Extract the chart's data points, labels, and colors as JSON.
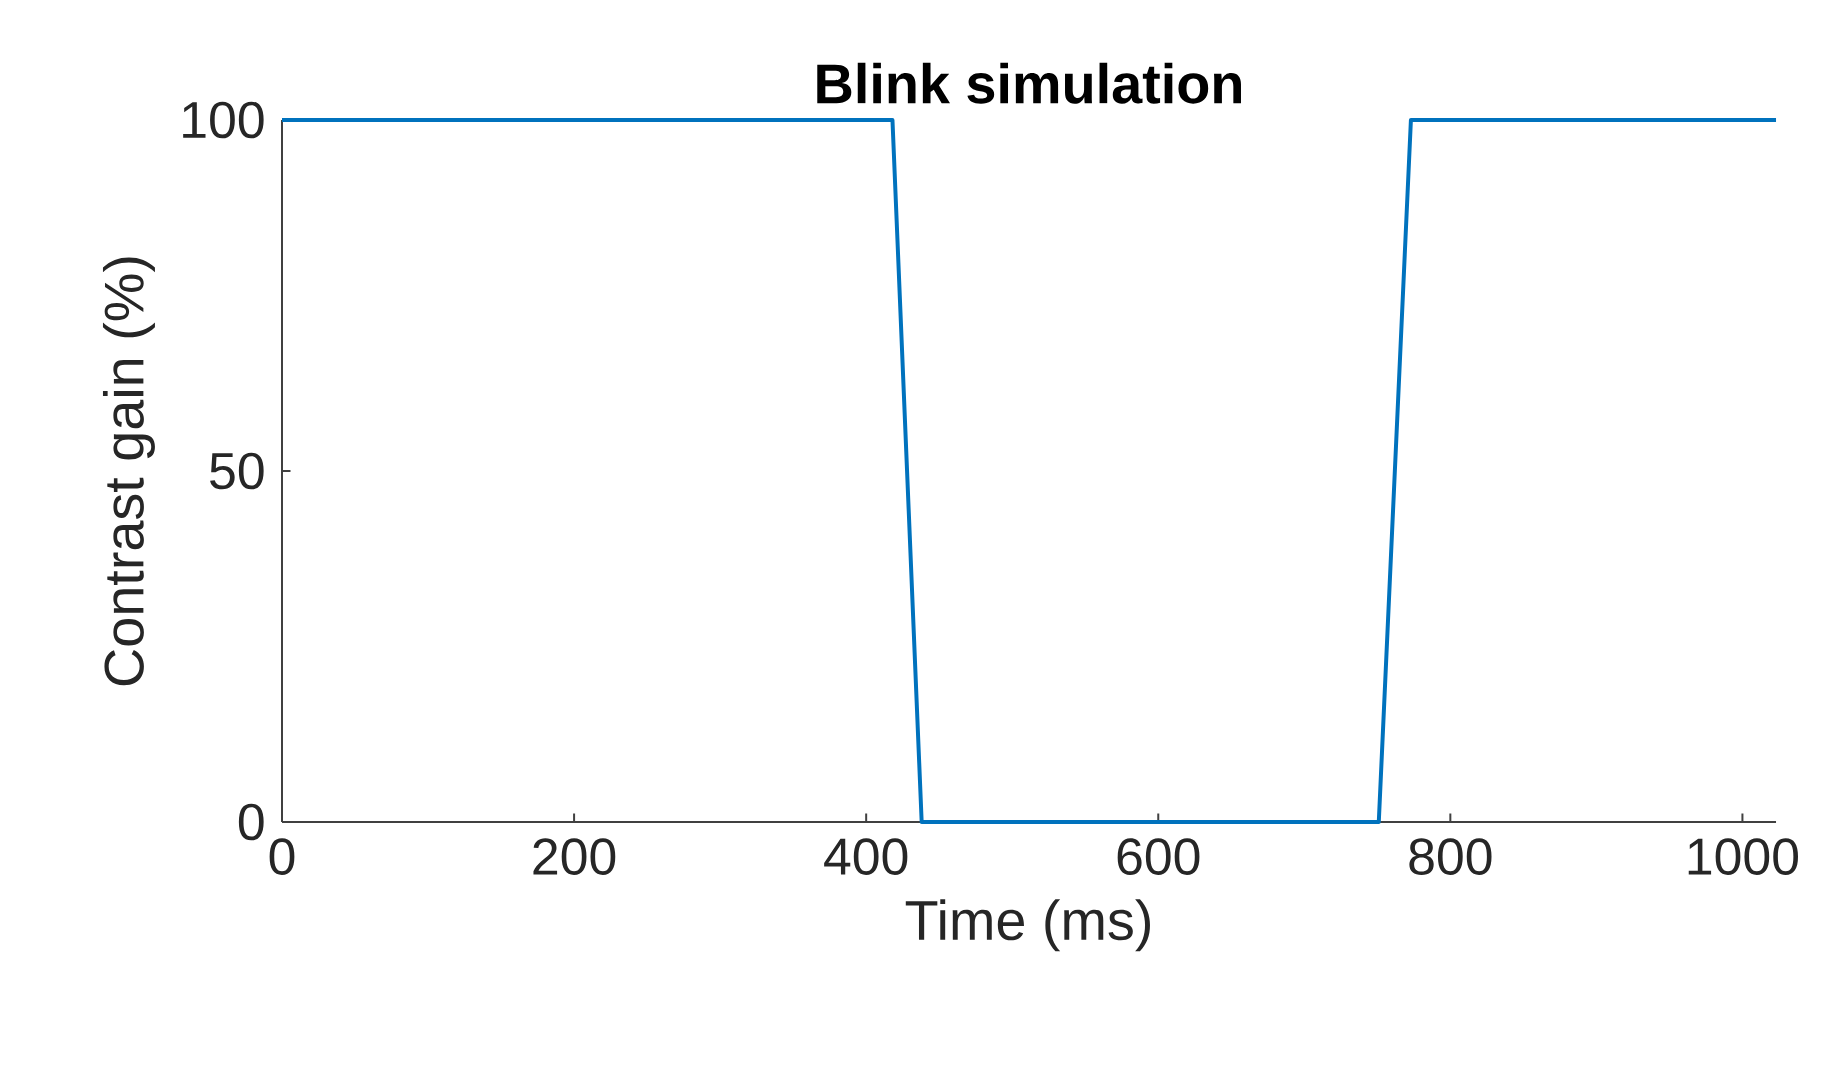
{
  "chart_data": {
    "type": "line",
    "title": "Blink simulation",
    "xlabel": "Time (ms)",
    "ylabel": "Contrast gain (%)",
    "x": [
      0,
      418,
      438,
      751,
      773,
      1023
    ],
    "series": [
      {
        "color": "#0072bd",
        "values": [
          100,
          100,
          0,
          0,
          100,
          100
        ]
      }
    ],
    "xlim": [
      0,
      1023
    ],
    "ylim": [
      0,
      100
    ],
    "xticks": [
      0,
      200,
      400,
      600,
      800,
      1000
    ],
    "yticks": [
      0,
      50,
      100
    ],
    "grid": false,
    "marker": "none",
    "line_style": "solid"
  }
}
